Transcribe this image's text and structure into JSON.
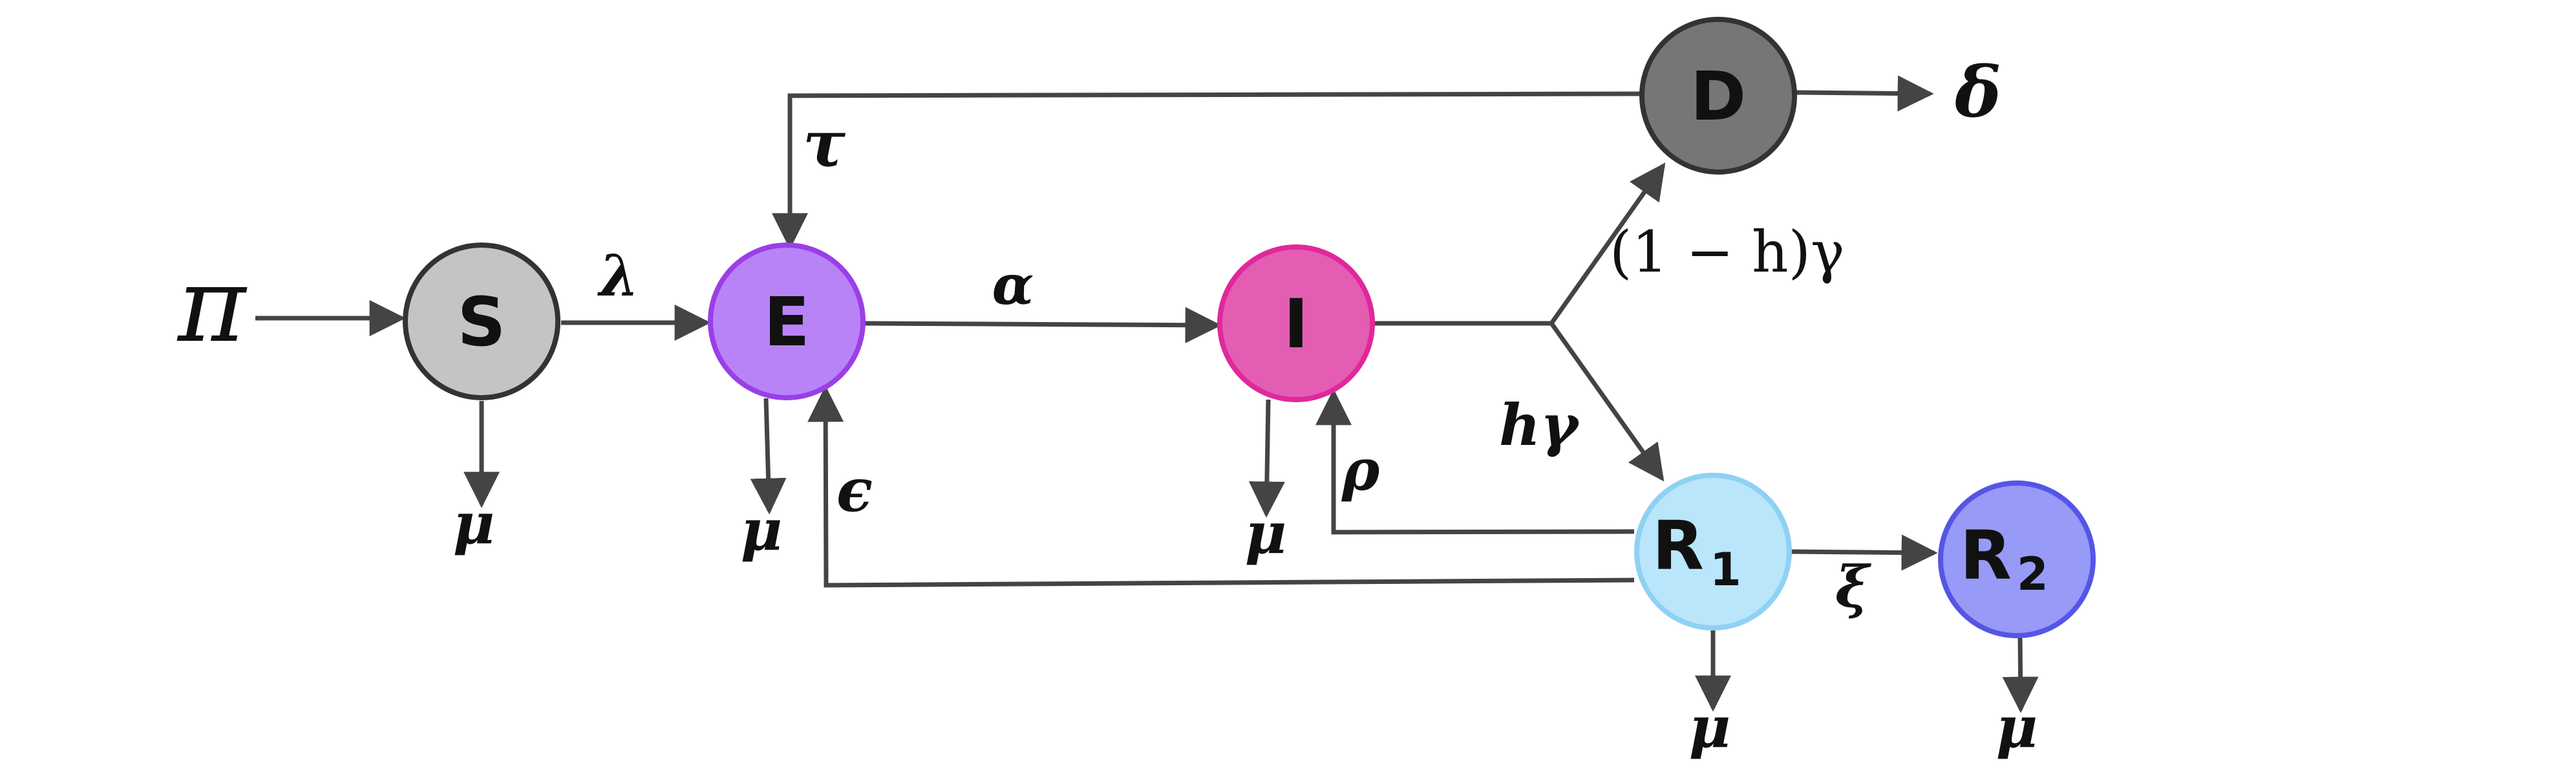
{
  "nodes": {
    "S": {
      "label": "S",
      "fill": "#c4c4c4",
      "stroke": "#333333"
    },
    "E": {
      "label": "E",
      "fill": "#b983f8",
      "stroke": "#9a3fe6"
    },
    "I": {
      "label": "I",
      "fill": "#e35db3",
      "stroke": "#e0289a"
    },
    "D": {
      "label": "D",
      "fill": "#767676",
      "stroke": "#333333"
    },
    "R1": {
      "label": "R",
      "sub": "1",
      "fill": "#b9e6fb",
      "stroke": "#8fd1f4"
    },
    "R2": {
      "label": "R",
      "sub": "2",
      "fill": "#979af6",
      "stroke": "#5555e6"
    }
  },
  "params": {
    "pi": "π",
    "lambda": "λ",
    "alpha": "α",
    "tau": "τ",
    "delta": "δ",
    "one_minus_h_gamma": "(1 − h)γ",
    "h_gamma": "hγ",
    "rho": "ρ",
    "epsilon": "ϵ",
    "xi": "ξ",
    "mu": "μ"
  }
}
